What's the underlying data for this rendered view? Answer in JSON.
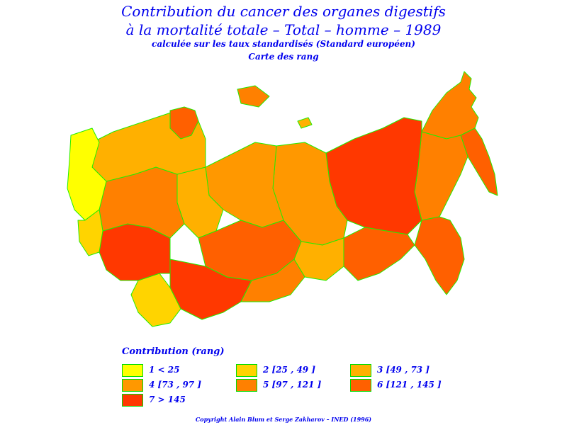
{
  "title": {
    "line1": "Contribution du cancer des organes digestifs",
    "line2": "à la mortalité totale – Total – homme – 1989",
    "line3": "calculée sur les taux standardisés (Standard européen)",
    "line4": "Carte des rang"
  },
  "legend": {
    "title": "Contribution (rang)",
    "items": [
      {
        "label": "1  <  25",
        "color": "#ffff00"
      },
      {
        "label": "2 [25 , 49 ]",
        "color": "#ffd400"
      },
      {
        "label": "3 [49 , 73 ]",
        "color": "#ffb000"
      },
      {
        "label": "4 [73 , 97 ]",
        "color": "#ff9800"
      },
      {
        "label": "5 [97 , 121 ]",
        "color": "#ff8000"
      },
      {
        "label": "6 [121 , 145 ]",
        "color": "#ff6000"
      },
      {
        "label": "7  >  145",
        "color": "#ff3800"
      }
    ]
  },
  "map": {
    "border_color": "#22ee00",
    "regions": [
      {
        "name": "siberia-east-plateau",
        "class": 7
      },
      {
        "name": "far-east-north",
        "class": 5
      },
      {
        "name": "kamchatka",
        "class": 6
      },
      {
        "name": "yakutia-east",
        "class": 5
      },
      {
        "name": "far-east-south",
        "class": 6
      },
      {
        "name": "siberia-west",
        "class": 4
      },
      {
        "name": "central-asia-south",
        "class": 7
      },
      {
        "name": "kazakhstan",
        "class": 6
      },
      {
        "name": "baikal-region",
        "class": 6
      },
      {
        "name": "european-north",
        "class": 3
      },
      {
        "name": "baltic-west",
        "class": 1
      },
      {
        "name": "ukraine-south",
        "class": 7
      },
      {
        "name": "caucasus",
        "class": 2
      }
    ]
  },
  "copyright": "Copyright Alain Blum et Serge Zakharov – INED (1996)"
}
